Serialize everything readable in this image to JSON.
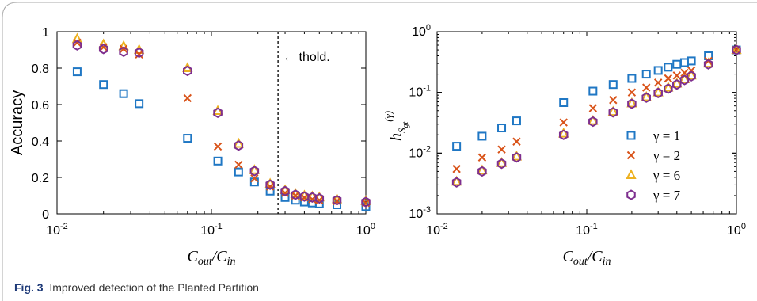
{
  "caption": {
    "label": "Fig. 3",
    "text": "Improved detection of the Planted Partition"
  },
  "colors": {
    "gamma1": "#1f77c4",
    "gamma2": "#d95319",
    "gamma6": "#edb120",
    "gamma7": "#7e2f8e",
    "accent_caption": "#1e3a78"
  },
  "chart_data": [
    {
      "type": "scatter",
      "xscale": "log",
      "yscale": "linear",
      "xlim": [
        0.01,
        1
      ],
      "ylim": [
        0,
        1
      ],
      "xlabel": "C_out/C_in",
      "ylabel": "Accuracy",
      "xticks": [
        0.01,
        0.1,
        1
      ],
      "xtick_labels": [
        [
          "10",
          "-2"
        ],
        [
          "10",
          "-1"
        ],
        [
          "10",
          "0"
        ]
      ],
      "yticks": [
        0,
        0.2,
        0.4,
        0.6,
        0.8,
        1
      ],
      "ytick_labels": [
        "0",
        "0.2",
        "0.4",
        "0.6",
        "0.8",
        "1"
      ],
      "grid": false,
      "threshold": {
        "x": 0.27,
        "label": "← thold."
      },
      "x": [
        0.0135,
        0.02,
        0.027,
        0.034,
        0.07,
        0.11,
        0.15,
        0.19,
        0.24,
        0.3,
        0.35,
        0.4,
        0.45,
        0.5,
        0.65,
        1.0
      ],
      "series": [
        {
          "key": "g1",
          "marker": "square",
          "color": "#1f77c4",
          "values": [
            0.78,
            0.71,
            0.66,
            0.605,
            0.415,
            0.29,
            0.23,
            0.175,
            0.125,
            0.09,
            0.075,
            0.065,
            0.06,
            0.055,
            0.05,
            0.04
          ]
        },
        {
          "key": "g2",
          "marker": "x",
          "color": "#d95319",
          "values": [
            0.94,
            0.915,
            0.905,
            0.875,
            0.635,
            0.37,
            0.27,
            0.195,
            0.15,
            0.115,
            0.1,
            0.09,
            0.08,
            0.075,
            0.07,
            0.06
          ]
        },
        {
          "key": "g6",
          "marker": "triangle",
          "color": "#edb120",
          "values": [
            0.96,
            0.93,
            0.92,
            0.9,
            0.8,
            0.565,
            0.385,
            0.24,
            0.165,
            0.13,
            0.11,
            0.1,
            0.095,
            0.09,
            0.08,
            0.07
          ]
        },
        {
          "key": "g7",
          "marker": "hexagon",
          "color": "#7e2f8e",
          "values": [
            0.925,
            0.905,
            0.89,
            0.885,
            0.785,
            0.555,
            0.375,
            0.235,
            0.16,
            0.125,
            0.105,
            0.095,
            0.09,
            0.085,
            0.075,
            0.065
          ]
        }
      ]
    },
    {
      "type": "scatter",
      "xscale": "log",
      "yscale": "log",
      "xlim": [
        0.01,
        1
      ],
      "ylim": [
        0.001,
        1
      ],
      "xlabel": "C_out/C_in",
      "ylabel": "h_{S_gt}^(γ)",
      "xticks": [
        0.01,
        0.1,
        1
      ],
      "xtick_labels": [
        [
          "10",
          "-2"
        ],
        [
          "10",
          "-1"
        ],
        [
          "10",
          "0"
        ]
      ],
      "yticks": [
        0.001,
        0.01,
        0.1,
        1
      ],
      "ytick_labels": [
        [
          "10",
          "-3"
        ],
        [
          "10",
          "-2"
        ],
        [
          "10",
          "-1"
        ],
        [
          "10",
          "0"
        ]
      ],
      "grid": false,
      "legend_position": "bottom-right",
      "x": [
        0.0135,
        0.02,
        0.027,
        0.034,
        0.07,
        0.11,
        0.15,
        0.2,
        0.25,
        0.3,
        0.35,
        0.4,
        0.45,
        0.5,
        0.65,
        1.0
      ],
      "series": [
        {
          "key": "g1",
          "name": "γ = 1",
          "marker": "square",
          "color": "#1f77c4",
          "values": [
            0.013,
            0.019,
            0.026,
            0.034,
            0.068,
            0.105,
            0.135,
            0.17,
            0.2,
            0.23,
            0.26,
            0.29,
            0.31,
            0.33,
            0.4,
            0.5
          ]
        },
        {
          "key": "g2",
          "name": "γ = 2",
          "marker": "x",
          "color": "#d95319",
          "values": [
            0.0055,
            0.0085,
            0.0115,
            0.0155,
            0.032,
            0.055,
            0.075,
            0.1,
            0.12,
            0.145,
            0.17,
            0.19,
            0.21,
            0.23,
            0.33,
            0.5
          ]
        },
        {
          "key": "g6",
          "name": "γ = 6",
          "marker": "triangle",
          "color": "#edb120",
          "values": [
            0.0034,
            0.0052,
            0.0069,
            0.0088,
            0.021,
            0.034,
            0.048,
            0.066,
            0.084,
            0.1,
            0.12,
            0.14,
            0.165,
            0.19,
            0.3,
            0.5
          ]
        },
        {
          "key": "g7",
          "name": "γ = 7",
          "marker": "hexagon",
          "color": "#7e2f8e",
          "values": [
            0.0033,
            0.005,
            0.0067,
            0.0085,
            0.02,
            0.033,
            0.047,
            0.065,
            0.082,
            0.098,
            0.115,
            0.135,
            0.16,
            0.185,
            0.29,
            0.5
          ]
        }
      ]
    }
  ]
}
